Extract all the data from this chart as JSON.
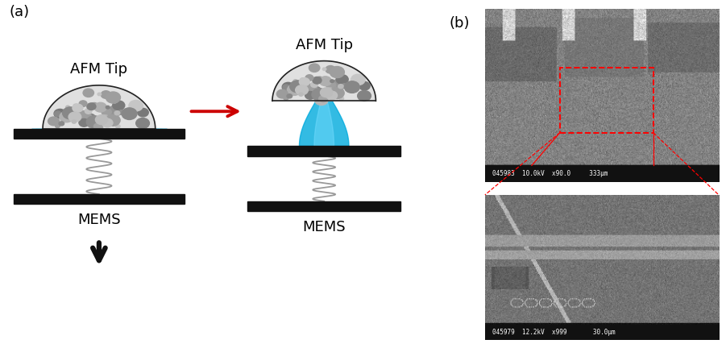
{
  "fig_width": 9.01,
  "fig_height": 4.32,
  "dpi": 100,
  "bg_color": "#ffffff",
  "label_a": "(a)",
  "label_b": "(b)",
  "label_fontsize": 13,
  "afm_tip_text": "AFM Tip",
  "mems_text": "MEMS",
  "text_fontsize": 13,
  "arrow_color": "#cc0000",
  "black_bar_color": "#111111",
  "spring_color": "#999999",
  "down_arrow_color": "#111111"
}
